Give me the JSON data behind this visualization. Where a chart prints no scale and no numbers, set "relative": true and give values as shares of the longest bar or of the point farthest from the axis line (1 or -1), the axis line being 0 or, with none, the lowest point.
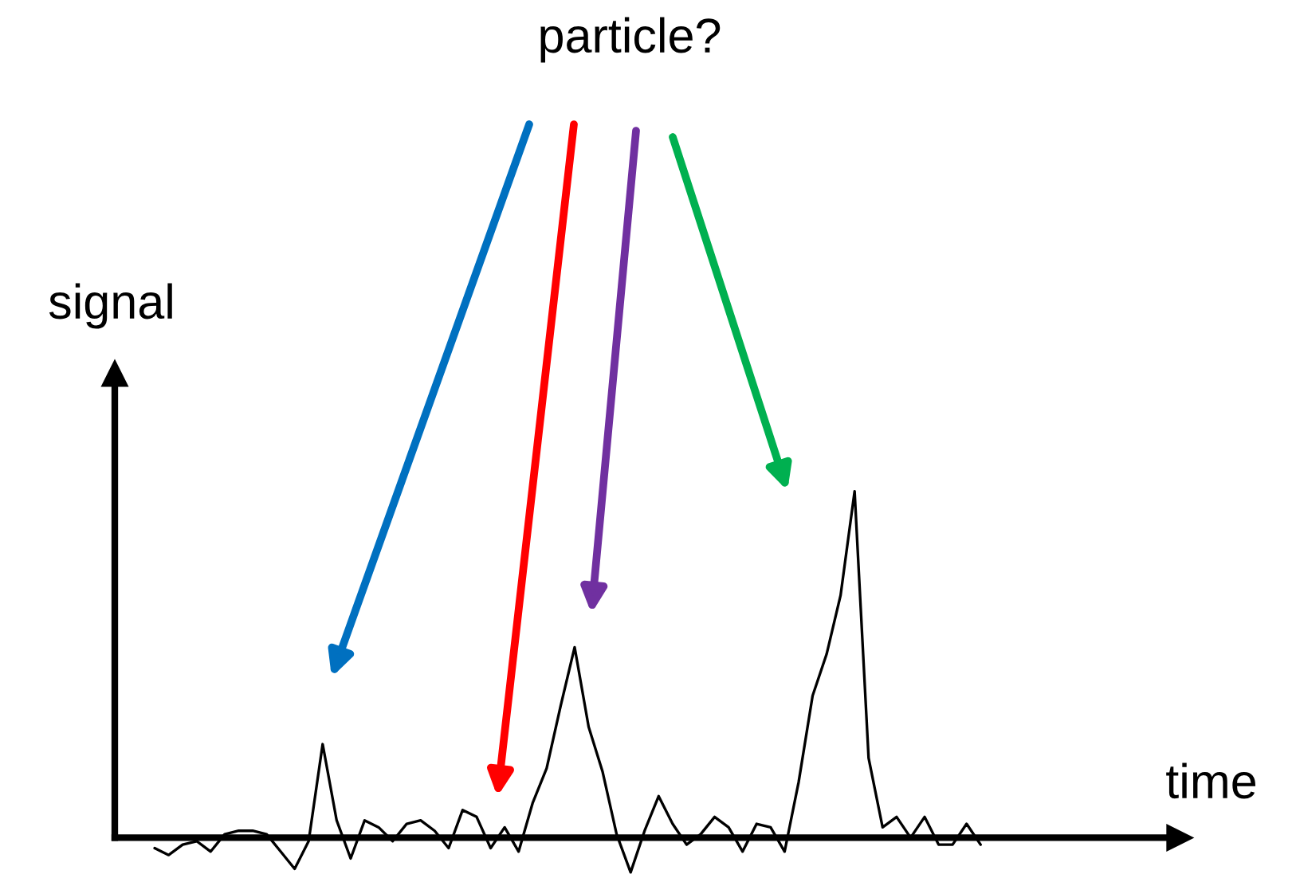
{
  "chart_data": {
    "type": "line",
    "relative": true,
    "title": "particle?",
    "xlabel": "time",
    "ylabel": "signal",
    "legend": false,
    "marker": "none",
    "line_style": "solid",
    "categories": [
      null,
      null,
      null,
      null,
      null,
      null,
      null,
      null,
      null,
      null,
      null,
      null,
      null,
      null,
      null,
      null,
      null,
      null,
      null,
      null,
      null,
      null,
      null,
      null,
      null,
      null,
      null,
      null,
      null,
      null,
      null,
      null,
      null,
      null,
      null,
      null,
      null,
      null,
      null,
      null,
      null,
      null,
      null,
      null,
      null,
      null,
      null,
      null,
      null,
      null,
      null,
      null,
      null,
      null,
      null,
      null,
      null,
      null,
      null,
      null
    ],
    "series": [
      {
        "color": "#000000",
        "values": [
          -0.03,
          -0.05,
          -0.02,
          -0.01,
          -0.04,
          0.01,
          0.02,
          0.02,
          0.01,
          -0.04,
          -0.09,
          -0.01,
          0.27,
          0.05,
          -0.06,
          0.05,
          0.03,
          -0.01,
          0.04,
          0.05,
          0.02,
          -0.03,
          0.08,
          0.06,
          -0.03,
          0.03,
          -0.04,
          0.1,
          0.2,
          0.38,
          0.55,
          0.32,
          0.19,
          0.01,
          -0.1,
          0.02,
          0.12,
          0.04,
          -0.02,
          0.01,
          0.06,
          0.03,
          -0.04,
          0.04,
          0.03,
          -0.04,
          0.16,
          0.41,
          0.53,
          0.7,
          1,
          0.23,
          0.03,
          0.06,
          0.0,
          0.06,
          -0.02,
          -0.02,
          0.04,
          -0.02
        ]
      }
    ]
  }
}
